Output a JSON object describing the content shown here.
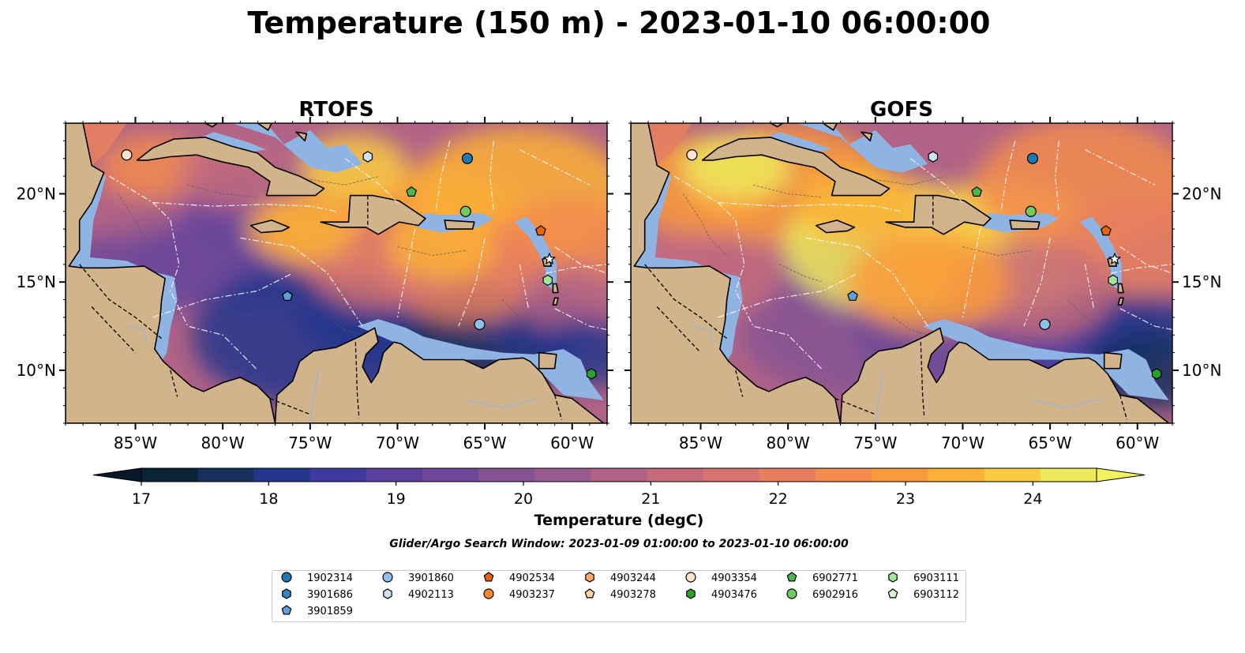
{
  "title": "Temperature (150 m) - 2023-01-10 06:00:00",
  "chart_data": {
    "type": "heatmap",
    "panels": [
      {
        "title": "RTOFS",
        "model": "rtofs"
      },
      {
        "title": "GOFS",
        "model": "gofs"
      }
    ],
    "x_ticks": [
      -85,
      -80,
      -75,
      -70,
      -65,
      -60
    ],
    "x_tick_labels": [
      "85°W",
      "80°W",
      "75°W",
      "70°W",
      "65°W",
      "60°W"
    ],
    "y_ticks": [
      10,
      15,
      20
    ],
    "y_tick_labels": [
      "10°N",
      "15°N",
      "20°N"
    ],
    "xlim": [
      -89,
      -58
    ],
    "ylim": [
      7,
      24
    ],
    "colorbar": {
      "label": "Temperature (degC)",
      "ticks": [
        17,
        18,
        19,
        20,
        21,
        22,
        23,
        24
      ],
      "range": [
        17,
        24.5
      ],
      "extend": "both",
      "colors": [
        "#0b2337",
        "#16305e",
        "#24368c",
        "#3f3a9f",
        "#5a3f9e",
        "#6f4999",
        "#855394",
        "#9a5c8e",
        "#b06386",
        "#c66b7c",
        "#d87470",
        "#e67f5f",
        "#f38c4d",
        "#f99a3b",
        "#fbb036",
        "#f8cb42",
        "#ecea5c"
      ],
      "under_color": "#07182a",
      "over_color": "#f2f25f"
    },
    "land_color": "#d1b48c",
    "shelf_color": "#8fb4e3",
    "search_window": "Glider/Argo Search Window: 2023-01-09 01:00:00 to 2023-01-10 06:00:00",
    "floats": [
      {
        "id": "1902314",
        "marker": "circle",
        "color": "#1f77b4",
        "lon": -66.0,
        "lat": 22.0
      },
      {
        "id": "3901686",
        "marker": "hexagon",
        "color": "#3a83c2",
        "lon": null,
        "lat": null
      },
      {
        "id": "3901859",
        "marker": "pentagon",
        "color": "#5f9fd6",
        "lon": -76.3,
        "lat": 14.2
      },
      {
        "id": "3901860",
        "marker": "circle",
        "color": "#8cc0ea",
        "lon": -65.3,
        "lat": 12.6
      },
      {
        "id": "4902113",
        "marker": "hexagon",
        "color": "#cfe4f7",
        "lon": -71.7,
        "lat": 22.1
      },
      {
        "id": "4902534",
        "marker": "pentagon",
        "color": "#e8650c",
        "lon": -61.8,
        "lat": 17.9
      },
      {
        "id": "4903237",
        "marker": "circle",
        "color": "#f7892a",
        "lon": null,
        "lat": null
      },
      {
        "id": "4903244",
        "marker": "hexagon",
        "color": "#fbac64",
        "lon": null,
        "lat": null
      },
      {
        "id": "4903278",
        "marker": "pentagon",
        "color": "#fdd1a2",
        "lon": null,
        "lat": null
      },
      {
        "id": "4903354",
        "marker": "circle",
        "color": "#fde2cc",
        "lon": -85.5,
        "lat": 22.2
      },
      {
        "id": "4903476",
        "marker": "hexagon",
        "color": "#2ca02c",
        "lon": -58.9,
        "lat": 9.8
      },
      {
        "id": "6902771",
        "marker": "pentagon",
        "color": "#4fb64b",
        "lon": -69.2,
        "lat": 20.1
      },
      {
        "id": "6902916",
        "marker": "circle",
        "color": "#6fcb62",
        "lon": -66.1,
        "lat": 19.0
      },
      {
        "id": "6903111",
        "marker": "hexagon",
        "color": "#a5e39a",
        "lon": -61.4,
        "lat": 15.1
      },
      {
        "id": "6903112",
        "marker": "pentagon",
        "color": "#d7f5cc",
        "lon": null,
        "lat": null
      }
    ]
  }
}
